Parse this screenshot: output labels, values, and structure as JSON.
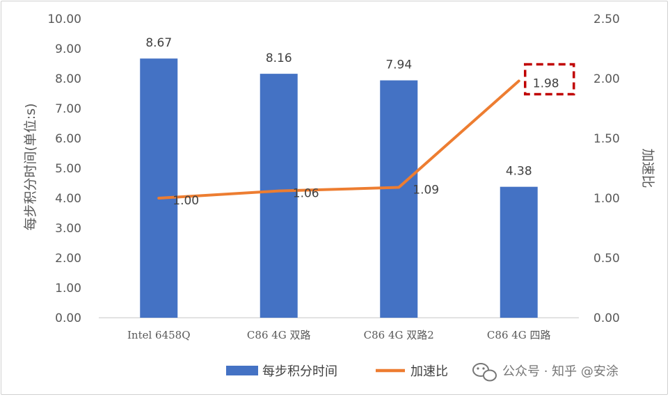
{
  "chart_data": {
    "type": "bar+line",
    "categories": [
      "Intel 6458Q",
      "C86 4G 双路",
      "C86 4G 双路2",
      "C86 4G 四路"
    ],
    "bar_series": {
      "name": "每步积分时间",
      "values": [
        8.67,
        8.16,
        7.94,
        4.38
      ],
      "color": "#4472c4"
    },
    "line_series": {
      "name": "加速比",
      "values": [
        1.0,
        1.06,
        1.09,
        1.98
      ],
      "labels": [
        "1.00",
        "1.06",
        "1.09",
        "1.98"
      ],
      "color": "#ed7d31"
    },
    "bar_labels": [
      "8.67",
      "8.16",
      "7.94",
      "4.38"
    ],
    "ylabel_left": "每步积分时间(单位:s)",
    "ylabel_right": "加速比",
    "ylim_left": [
      0,
      10
    ],
    "ylim_right": [
      0,
      2.5
    ],
    "yticks_left": [
      "0.00",
      "1.00",
      "2.00",
      "3.00",
      "4.00",
      "5.00",
      "6.00",
      "7.00",
      "8.00",
      "9.00",
      "10.00"
    ],
    "yticks_right": [
      "0.00",
      "0.50",
      "1.00",
      "1.50",
      "2.00",
      "2.50"
    ],
    "grid": false,
    "legend_position": "bottom",
    "highlight": {
      "target": "1.98",
      "color": "#c00000",
      "style": "dashed-box"
    }
  },
  "watermark": {
    "text": "公众号 · 知乎 @安涂",
    "icon": "wechat-icon"
  }
}
